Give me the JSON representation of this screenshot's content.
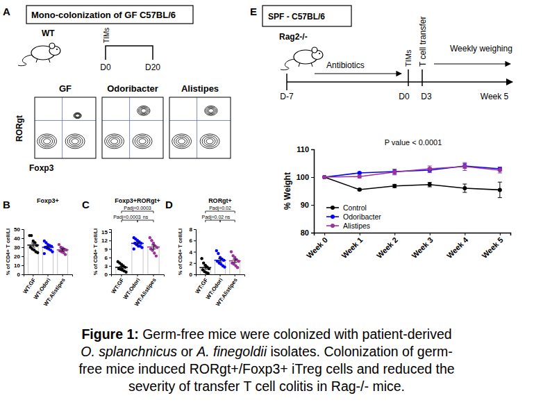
{
  "panel_labels": [
    "A",
    "B",
    "C",
    "D",
    "E"
  ],
  "schematic_a": {
    "box_title": "Mono-colonization of GF C57BL/6",
    "mouse": "WT",
    "treatment": "TIMs",
    "timepoints": [
      "D0",
      "D20"
    ]
  },
  "flow_plots": {
    "samples": [
      "GF",
      "Odoribacter",
      "Alistipes"
    ],
    "y_label": "RORgt",
    "x_label": "Foxp3"
  },
  "schematic_e": {
    "box_title": "SPF - C57BL/6",
    "mouse": "Rag2-/-",
    "events": [
      "Antibiotics",
      "TIMs",
      "T cell transfer",
      "Weekly weighing"
    ],
    "timepoints": [
      "D-7",
      "D0",
      "D3",
      "Week 5"
    ]
  },
  "chart_data": [
    {
      "type": "bar",
      "title": "Foxp3+",
      "y_label": "% of CD4+ T cell/LI",
      "categories": [
        "WT:GF",
        "WT:Odori",
        "WT:Alistipes"
      ],
      "values": [
        32.4,
        30.0,
        27.1
      ],
      "errors": [
        2.2,
        1.3,
        1.2
      ],
      "points": [
        [
          43,
          43,
          37,
          35,
          32,
          30,
          28,
          27,
          25,
          24
        ],
        [
          37,
          35,
          33,
          32,
          31,
          30,
          29,
          28,
          27,
          25,
          23
        ],
        [
          33,
          30,
          29,
          28,
          27,
          26,
          25,
          24,
          22
        ]
      ],
      "colors": [
        "#000000",
        "#0000ff",
        "#993399"
      ],
      "ylim": [
        0,
        50
      ],
      "yticks": [
        0,
        10,
        20,
        30,
        40,
        50
      ]
    },
    {
      "type": "bar",
      "title": "Foxp3+RORgt+",
      "y_label": "% of CD4+ T cell/LI",
      "categories": [
        "WT:GF",
        "WT:Odori",
        "WT:Alistipes"
      ],
      "values": [
        2.5,
        11.0,
        9.7
      ],
      "errors": [
        0.4,
        0.4,
        0.7
      ],
      "points": [
        [
          4.5,
          4,
          3.5,
          3,
          2.5,
          2,
          1.8,
          1.5,
          1.2,
          0.8
        ],
        [
          13,
          12.5,
          12,
          11.5,
          11,
          11,
          10.5,
          10,
          10,
          9.5,
          9
        ],
        [
          13,
          12,
          11,
          10,
          9.5,
          9,
          8.5,
          7.5,
          6.5
        ]
      ],
      "colors": [
        "#000000",
        "#0000ff",
        "#993399"
      ],
      "ylim": [
        0,
        16
      ],
      "yticks": [
        0,
        3,
        6,
        9,
        12,
        15
      ],
      "comparisons": [
        {
          "groups": [
            "WT:GF",
            "WT:Alistipes"
          ],
          "label": "Padj=0.0003"
        },
        {
          "groups": [
            "WT:GF",
            "WT:Odori"
          ],
          "label": "Padj=0.0003"
        },
        {
          "groups": [
            "WT:Odori",
            "WT:Alistipes"
          ],
          "label": "ns"
        }
      ]
    },
    {
      "type": "bar",
      "title": "RORgt+",
      "y_label": "% of CD4+ T cell/LI",
      "categories": [
        "WT:GF",
        "WT:Odori",
        "WT:Alistipes"
      ],
      "values": [
        1.2,
        2.5,
        2.4
      ],
      "errors": [
        0.3,
        0.3,
        0.3
      ],
      "points": [
        [
          2.8,
          2,
          1.6,
          1.3,
          1,
          0.8,
          0.5,
          0.3,
          0.2
        ],
        [
          4.2,
          3.7,
          3,
          2.7,
          2.5,
          2.3,
          2,
          1.8,
          1.5,
          1.3
        ],
        [
          4,
          3.3,
          3,
          2.6,
          2.3,
          2,
          1.8,
          1.5,
          1.2
        ]
      ],
      "colors": [
        "#000000",
        "#0000ff",
        "#993399"
      ],
      "ylim": [
        0,
        8
      ],
      "yticks": [
        0,
        2,
        4,
        6,
        8
      ],
      "comparisons": [
        {
          "groups": [
            "WT:GF",
            "WT:Alistipes"
          ],
          "label": "Padj=0.02"
        },
        {
          "groups": [
            "WT:GF",
            "WT:Odori"
          ],
          "label": "Padj=0.02"
        },
        {
          "groups": [
            "WT:Odori",
            "WT:Alistipes"
          ],
          "label": "ns"
        }
      ]
    },
    {
      "type": "line",
      "y_label": "% Weight",
      "annotation": "P value < 0.0001",
      "categories": [
        "Week 0",
        "Week 1",
        "Week 2",
        "Week 3",
        "Week 4",
        "Week 5"
      ],
      "series": [
        {
          "name": "Control",
          "color": "#000000",
          "values": [
            100,
            95.5,
            96.8,
            97.3,
            96.0,
            95.4
          ],
          "errors": [
            0,
            0.4,
            0.6,
            0.8,
            1.5,
            2.8
          ]
        },
        {
          "name": "Odoribacter",
          "color": "#0000ff",
          "values": [
            100,
            101.5,
            102.0,
            102.5,
            104.0,
            103.0
          ],
          "errors": [
            0,
            0.3,
            0.8,
            0.8,
            0.8,
            0.6
          ]
        },
        {
          "name": "Alistipes",
          "color": "#993399",
          "values": [
            100,
            100.2,
            101.8,
            103.0,
            103.8,
            102.5
          ],
          "errors": [
            0,
            0.5,
            1.0,
            1.0,
            1.4,
            1.0
          ]
        }
      ],
      "ylim": [
        80,
        110
      ],
      "yticks": [
        80,
        90,
        100,
        110
      ],
      "legend": "lower left",
      "marker": "circle"
    }
  ],
  "caption": [
    [
      {
        "text": "Figure 1:",
        "bold": true
      },
      {
        "text": " Germ-free mice were colonized with patient-derived"
      }
    ],
    [
      {
        "text": "O. splanchnicus",
        "italic": true
      },
      {
        "text": " or "
      },
      {
        "text": "A. finegoldii",
        "italic": true
      },
      {
        "text": " isolates. Colonization of germ-"
      }
    ],
    [
      {
        "text": "free mice induced RORgt+/Foxp3+ iTreg cells and reduced the"
      }
    ],
    [
      {
        "text": "severity of transfer T cell colitis in Rag-/- mice."
      }
    ]
  ]
}
